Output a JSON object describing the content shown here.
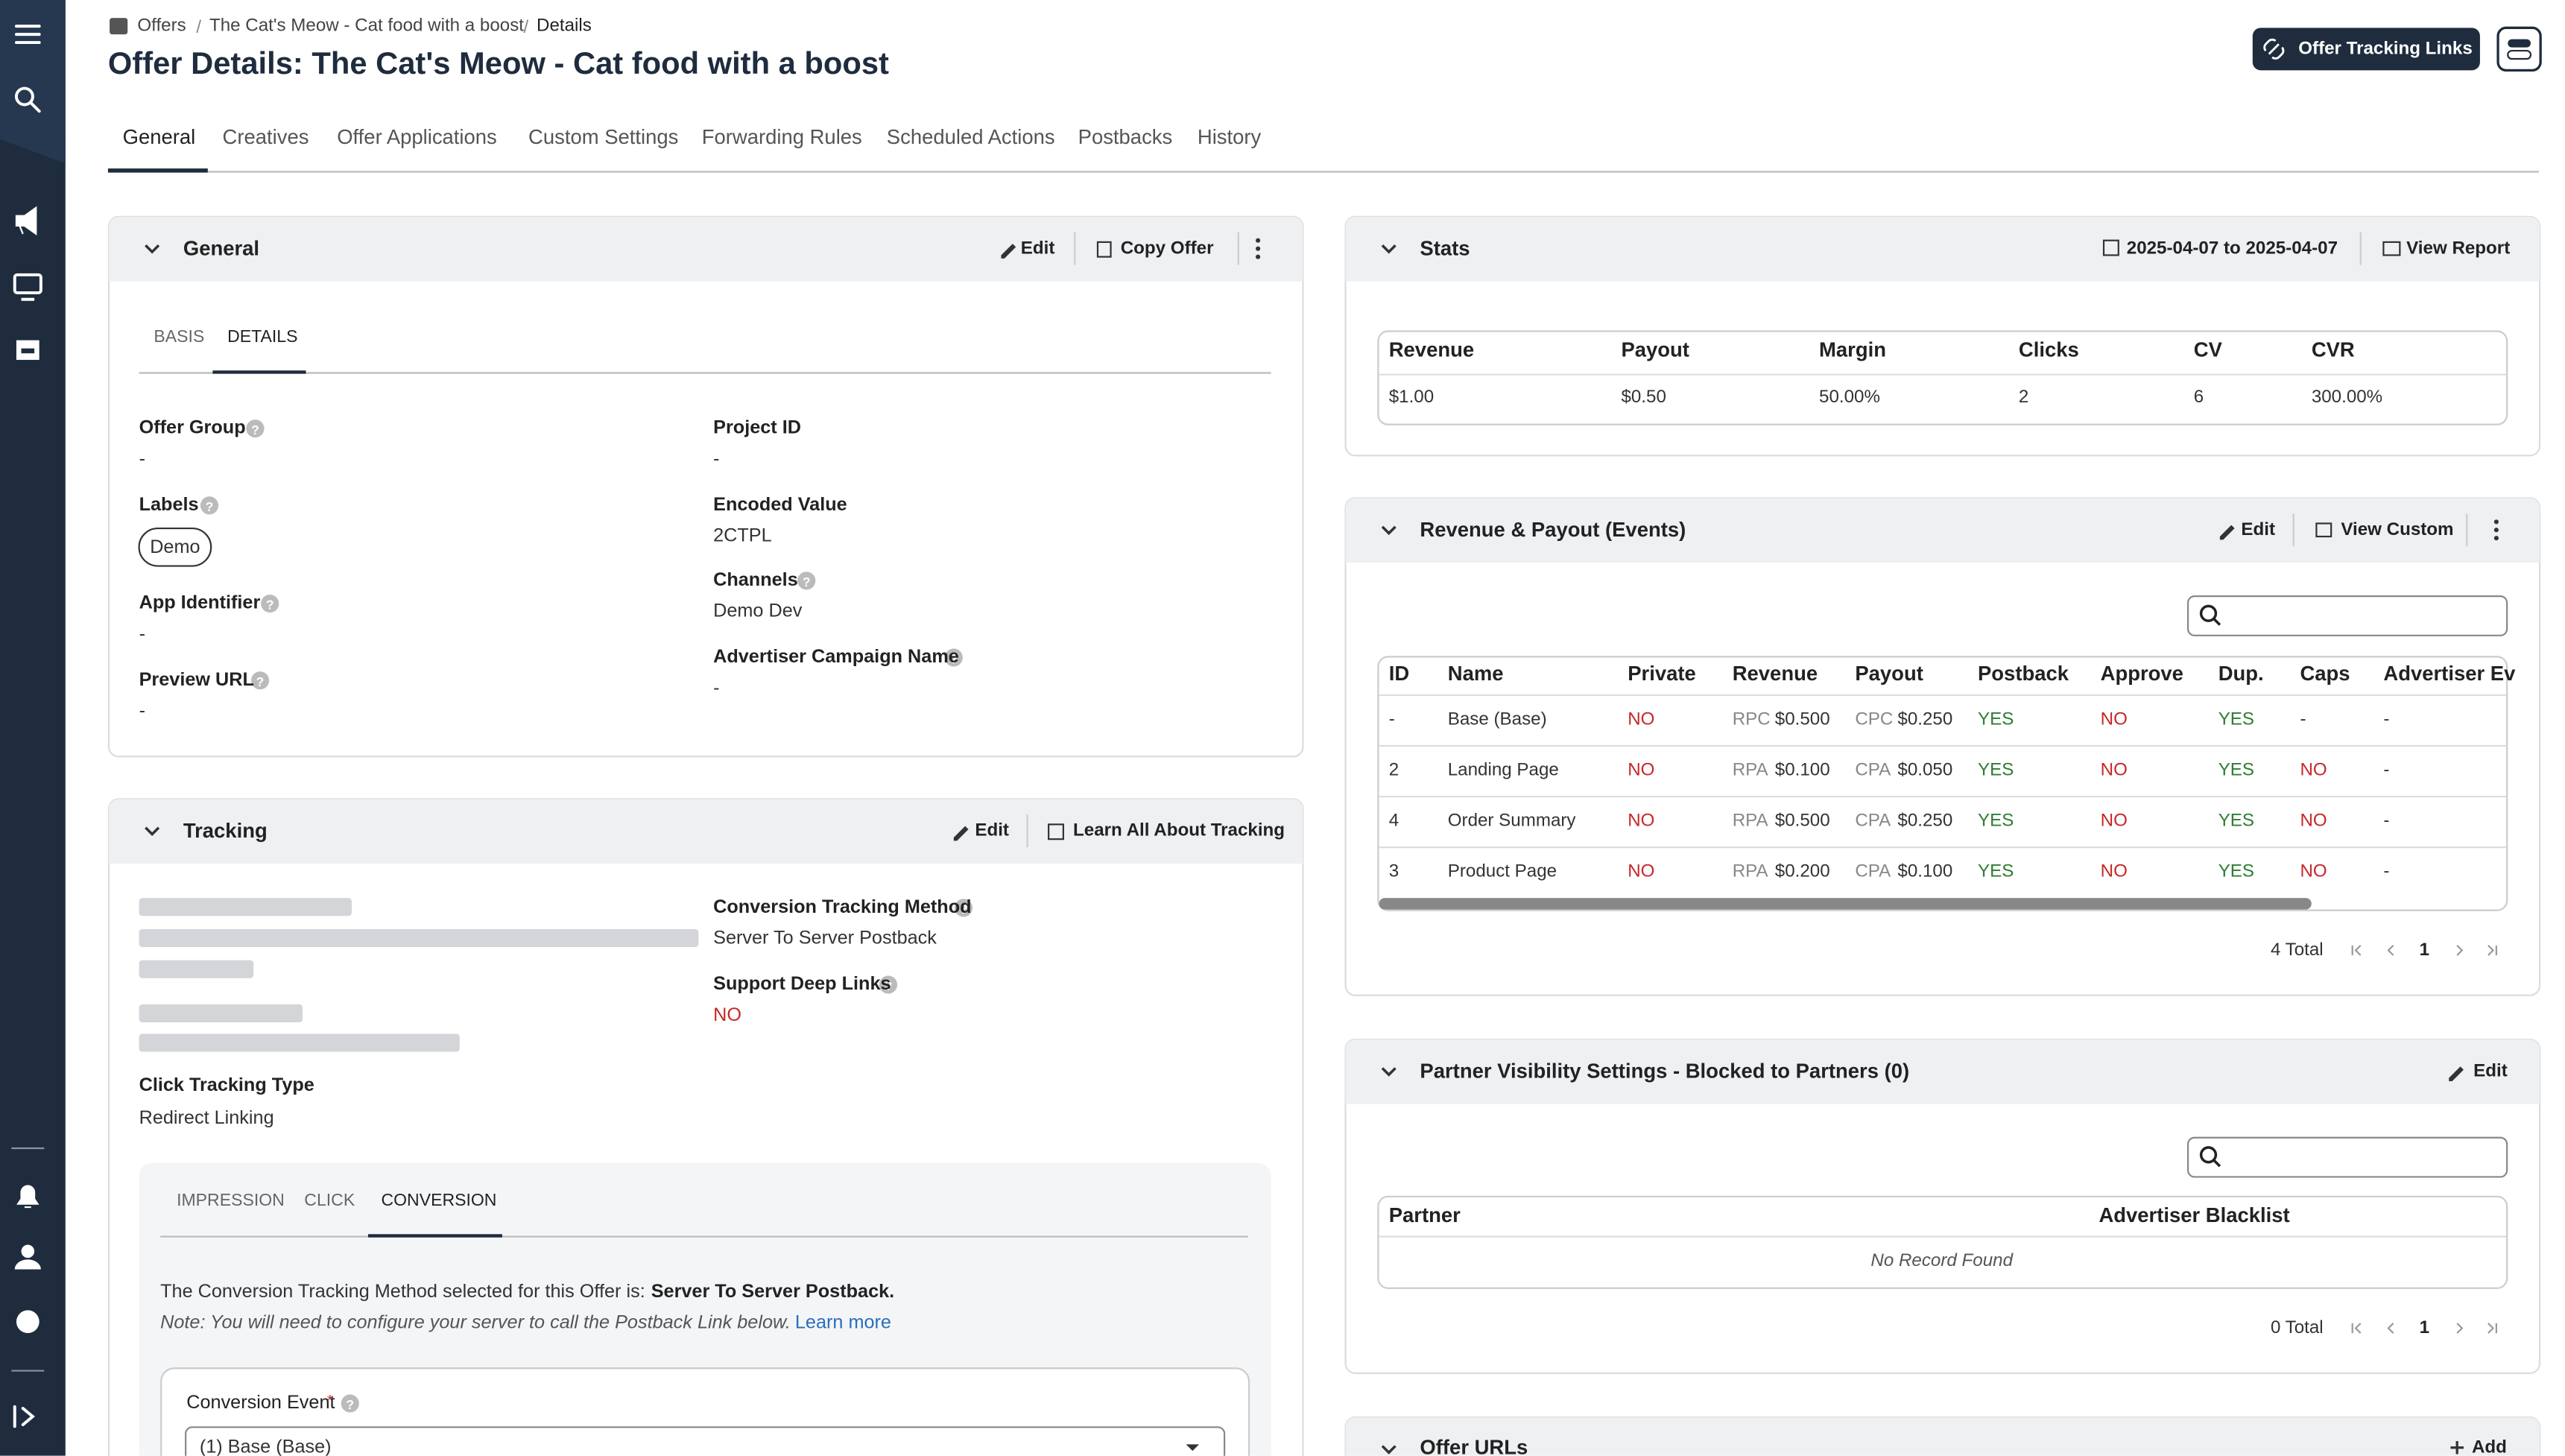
{
  "breadcrumb": [
    "Offers",
    "The Cat's Meow - Cat food with a boost",
    "Details"
  ],
  "title": "Offer Details: The Cat's Meow - Cat food with a boost",
  "header_button": "Offer Tracking Links",
  "tabs": [
    "General",
    "Creatives",
    "Offer Applications",
    "Custom Settings",
    "Forwarding Rules",
    "Scheduled Actions",
    "Postbacks",
    "History"
  ],
  "general": {
    "title": "General",
    "edit": "Edit",
    "copy": "Copy Offer",
    "subtabs": [
      "BASIS",
      "DETAILS"
    ],
    "fields": [
      {
        "label": "Offer Group",
        "value": "-"
      },
      {
        "label": "Labels",
        "value": "Demo"
      },
      {
        "label": "App Identifier",
        "value": "-"
      },
      {
        "label": "Preview URL",
        "value": "-"
      },
      {
        "label": "Project ID",
        "value": "-"
      },
      {
        "label": "Encoded Value",
        "value": "2CTPL"
      },
      {
        "label": "Channels",
        "value": "Demo Dev"
      },
      {
        "label": "Advertiser Campaign Name",
        "value": "-"
      }
    ]
  },
  "tracking": {
    "title": "Tracking",
    "edit": "Edit",
    "learn": "Learn All About Tracking",
    "fields": [
      {
        "label": "Conversion Tracking Method",
        "value": "Server To Server Postback"
      },
      {
        "label": "Support Deep Links",
        "value": "NO"
      },
      {
        "label": "Click Tracking Type",
        "value": "Redirect Linking"
      }
    ],
    "subtabs": [
      "IMPRESSION",
      "CLICK",
      "CONVERSION"
    ],
    "method_text": "The Conversion Tracking Method selected for this Offer is:",
    "method_value": "Server To Server Postback.",
    "note": "Note: You will need to configure your server to call the Postback Link below.",
    "learn_more": "Learn more",
    "conversion_event": {
      "label": "Conversion Event",
      "required": "*",
      "value": "(1) Base (Base)"
    }
  },
  "stats": {
    "title": "Stats",
    "date_range": "2025-04-07 to 2025-04-07",
    "view_report": "View Report",
    "columns": [
      "Revenue",
      "Payout",
      "Margin",
      "Clicks",
      "CV",
      "CVR"
    ],
    "row": [
      "$1.00",
      "$0.50",
      "50.00%",
      "2",
      "6",
      "300.00%"
    ]
  },
  "revenue_payout": {
    "title": "Revenue & Payout (Events)",
    "edit": "Edit",
    "view_custom": "View Custom",
    "columns": [
      "ID",
      "Name",
      "Private",
      "Revenue",
      "Payout",
      "Postback",
      "Approve",
      "Dup.",
      "Caps",
      "Advertiser Ev"
    ],
    "rows": [
      [
        "-",
        "Base (Base)",
        "NO",
        "RPC",
        "$0.500",
        "CPC",
        "$0.250",
        "YES",
        "NO",
        "YES",
        "-",
        "-"
      ],
      [
        "2",
        "Landing Page",
        "NO",
        "RPA",
        "$0.100",
        "CPA",
        "$0.050",
        "YES",
        "NO",
        "YES",
        "NO",
        "-"
      ],
      [
        "4",
        "Order Summary",
        "NO",
        "RPA",
        "$0.500",
        "CPA",
        "$0.250",
        "YES",
        "NO",
        "YES",
        "NO",
        "-"
      ],
      [
        "3",
        "Product Page",
        "NO",
        "RPA",
        "$0.200",
        "CPA",
        "$0.100",
        "YES",
        "NO",
        "YES",
        "NO",
        "-"
      ]
    ],
    "total": "4 Total",
    "page": "1"
  },
  "partner_visibility": {
    "title": "Partner Visibility Settings - Blocked to Partners (0)",
    "edit": "Edit",
    "columns": [
      "Partner",
      "Advertiser Blacklist"
    ],
    "empty": "No Record Found",
    "total": "0 Total",
    "page": "1"
  },
  "offer_urls": {
    "title": "Offer URLs",
    "add": "Add"
  }
}
